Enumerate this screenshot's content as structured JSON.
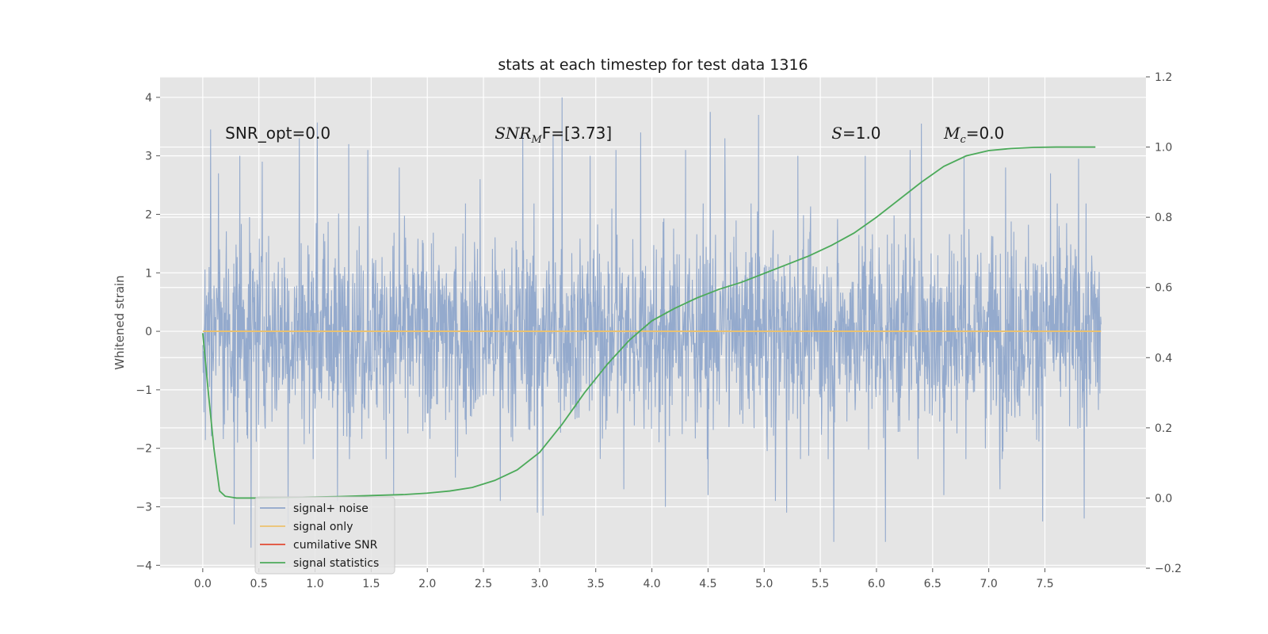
{
  "chart_data": {
    "type": "line",
    "title": "stats at each timestep for test data 1316",
    "ylabel": "Whitened strain",
    "y2label": "",
    "xlim": [
      -0.38,
      8.4
    ],
    "ylim": [
      -4.05,
      4.35
    ],
    "y2lim": [
      -0.2,
      1.2
    ],
    "x_ticks": [
      0.0,
      0.5,
      1.0,
      1.5,
      2.0,
      2.5,
      3.0,
      3.5,
      4.0,
      4.5,
      5.0,
      5.5,
      6.0,
      6.5,
      7.0,
      7.5
    ],
    "x_tick_labels": [
      "0.0",
      "0.5",
      "1.0",
      "1.5",
      "2.0",
      "2.5",
      "3.0",
      "3.5",
      "4.0",
      "4.5",
      "5.0",
      "5.5",
      "6.0",
      "6.5",
      "7.0",
      "7.5"
    ],
    "y_ticks": [
      4,
      3,
      2,
      1,
      0,
      -1,
      -2,
      -3,
      -4
    ],
    "y_tick_labels": [
      "4",
      "3",
      "2",
      "1",
      "0",
      "−1",
      "−2",
      "−3",
      "−4"
    ],
    "y2_ticks": [
      1.2,
      1.0,
      0.8,
      0.6,
      0.4,
      0.2,
      0.0,
      -0.2
    ],
    "y2_tick_labels": [
      "1.2",
      "1.0",
      "0.8",
      "0.6",
      "0.4",
      "0.2",
      "0.0",
      "−0.2"
    ],
    "grid": true,
    "legend_position": "lower-left",
    "annotations": [
      {
        "text": "SNR_opt=0.0",
        "x": 0.2,
        "y": 3.2
      },
      {
        "base": "SNR",
        "sub": "M",
        "rest": "F=[3.73]",
        "x": 2.6,
        "y": 3.2
      },
      {
        "base": "S",
        "rest": "=1.0",
        "x": 5.6,
        "y": 3.2
      },
      {
        "base": "M",
        "sub": "c",
        "rest": "=0.0",
        "x": 6.6,
        "y": 3.2
      }
    ],
    "series": [
      {
        "name": "signal+ noise",
        "color": "#8fa6cb",
        "axis": "left",
        "style": "noise",
        "x_range": [
          0.0,
          8.0
        ],
        "envelope_typical": [
          -1.9,
          1.9
        ],
        "y_min_observed": -3.7,
        "y_max_observed": 4.0,
        "peaks": [
          {
            "x": 0.07,
            "y": 3.45
          },
          {
            "x": 0.14,
            "y": 2.7
          },
          {
            "x": 0.33,
            "y": 3.0
          },
          {
            "x": 0.53,
            "y": 2.9
          },
          {
            "x": 0.86,
            "y": 3.3
          },
          {
            "x": 1.02,
            "y": 3.57
          },
          {
            "x": 1.3,
            "y": 3.2
          },
          {
            "x": 1.47,
            "y": 3.1
          },
          {
            "x": 1.75,
            "y": 2.8
          },
          {
            "x": 2.47,
            "y": 2.6
          },
          {
            "x": 2.65,
            "y": 3.2
          },
          {
            "x": 2.85,
            "y": 3.4
          },
          {
            "x": 3.12,
            "y": 3.35
          },
          {
            "x": 3.2,
            "y": 4.0
          },
          {
            "x": 3.45,
            "y": 3.0
          },
          {
            "x": 3.68,
            "y": 3.1
          },
          {
            "x": 3.9,
            "y": 3.4
          },
          {
            "x": 4.3,
            "y": 3.1
          },
          {
            "x": 4.52,
            "y": 3.75
          },
          {
            "x": 4.65,
            "y": 3.3
          },
          {
            "x": 4.95,
            "y": 3.7
          },
          {
            "x": 5.3,
            "y": 3.0
          },
          {
            "x": 5.9,
            "y": 3.0
          },
          {
            "x": 6.3,
            "y": 3.1
          },
          {
            "x": 6.4,
            "y": 3.55
          },
          {
            "x": 6.78,
            "y": 3.0
          },
          {
            "x": 7.15,
            "y": 2.8
          },
          {
            "x": 7.55,
            "y": 2.7
          },
          {
            "x": 7.8,
            "y": 2.95
          }
        ],
        "troughs": [
          {
            "x": 0.28,
            "y": -3.3
          },
          {
            "x": 0.43,
            "y": -3.7
          },
          {
            "x": 0.76,
            "y": -3.3
          },
          {
            "x": 1.2,
            "y": -2.9
          },
          {
            "x": 1.7,
            "y": -2.8
          },
          {
            "x": 2.25,
            "y": -2.5
          },
          {
            "x": 2.65,
            "y": -2.9
          },
          {
            "x": 2.98,
            "y": -3.1
          },
          {
            "x": 3.03,
            "y": -3.15
          },
          {
            "x": 3.75,
            "y": -2.7
          },
          {
            "x": 4.12,
            "y": -3.0
          },
          {
            "x": 4.5,
            "y": -2.8
          },
          {
            "x": 5.1,
            "y": -2.9
          },
          {
            "x": 5.2,
            "y": -3.1
          },
          {
            "x": 5.62,
            "y": -3.6
          },
          {
            "x": 6.08,
            "y": -3.6
          },
          {
            "x": 6.6,
            "y": -2.8
          },
          {
            "x": 7.1,
            "y": -2.7
          },
          {
            "x": 7.48,
            "y": -3.25
          },
          {
            "x": 7.85,
            "y": -3.2
          }
        ]
      },
      {
        "name": "signal only",
        "color": "#ecc26d",
        "axis": "left",
        "x": [
          0.0,
          8.0
        ],
        "y": [
          0.0,
          0.0
        ]
      },
      {
        "name": "cumilative SNR",
        "color": "#e24a33",
        "axis": "right",
        "x": [],
        "y": []
      },
      {
        "name": "signal statistics",
        "color": "#4caa5a",
        "axis": "right",
        "x": [
          0.0,
          0.05,
          0.1,
          0.15,
          0.2,
          0.3,
          0.5,
          0.8,
          1.0,
          1.2,
          1.5,
          1.8,
          2.0,
          2.2,
          2.4,
          2.6,
          2.8,
          3.0,
          3.2,
          3.4,
          3.6,
          3.8,
          4.0,
          4.2,
          4.4,
          4.6,
          4.8,
          5.0,
          5.2,
          5.4,
          5.6,
          5.8,
          6.0,
          6.2,
          6.4,
          6.6,
          6.8,
          7.0,
          7.2,
          7.4,
          7.6,
          7.8,
          7.95
        ],
        "y": [
          0.47,
          0.3,
          0.14,
          0.02,
          0.005,
          0.0,
          0.0,
          0.002,
          0.003,
          0.004,
          0.007,
          0.01,
          0.014,
          0.02,
          0.03,
          0.05,
          0.08,
          0.13,
          0.21,
          0.3,
          0.38,
          0.45,
          0.505,
          0.54,
          0.57,
          0.595,
          0.615,
          0.64,
          0.665,
          0.69,
          0.72,
          0.755,
          0.8,
          0.85,
          0.9,
          0.945,
          0.975,
          0.99,
          0.996,
          0.999,
          1.0,
          1.0,
          1.0
        ]
      }
    ]
  }
}
